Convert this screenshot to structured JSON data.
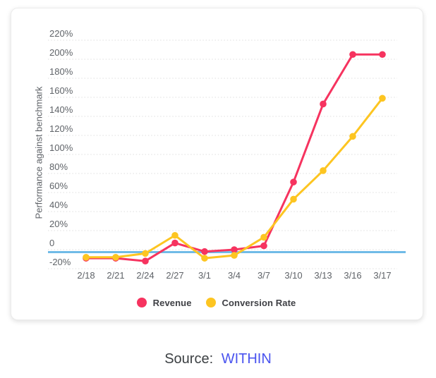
{
  "chart_data": {
    "type": "line",
    "title": "",
    "xlabel": "",
    "ylabel": "Performance against benchmark",
    "categories": [
      "2/18",
      "2/21",
      "2/24",
      "2/27",
      "3/1",
      "3/4",
      "3/7",
      "3/10",
      "3/13",
      "3/16",
      "3/17"
    ],
    "series": [
      {
        "name": "Revenue",
        "color": "#f6335f",
        "values": [
          -9,
          -9,
          -12,
          7,
          -2,
          0,
          4,
          71,
          153,
          205,
          205
        ]
      },
      {
        "name": "Conversion Rate",
        "color": "#fdc521",
        "values": [
          -8,
          -8,
          -4,
          15,
          -9,
          -6,
          13,
          53,
          83,
          119,
          159
        ]
      }
    ],
    "y_axis": {
      "min": -20,
      "max": 220,
      "step": 20,
      "unit": "%",
      "zero_label": "0",
      "tick_labels": [
        "-20%",
        "0",
        "20%",
        "40%",
        "60%",
        "80%",
        "100%",
        "120%",
        "140%",
        "160%",
        "180%",
        "200%",
        "220%"
      ]
    },
    "benchmark_line": {
      "value": 0,
      "color": "#70bbe7"
    },
    "grid": "dotted-horizontal",
    "legend_position": "bottom",
    "legend": [
      "Revenue",
      "Conversion Rate"
    ]
  },
  "source": {
    "prefix": "Source:",
    "link_text": "WITHIN"
  },
  "colors": {
    "revenue": "#f6335f",
    "conversion_rate": "#fdc521",
    "benchmark": "#70bbe7",
    "link": "#4a54ef",
    "axis_text": "#5f6368",
    "legend_text": "#3f4045",
    "gridline": "#dedede"
  }
}
